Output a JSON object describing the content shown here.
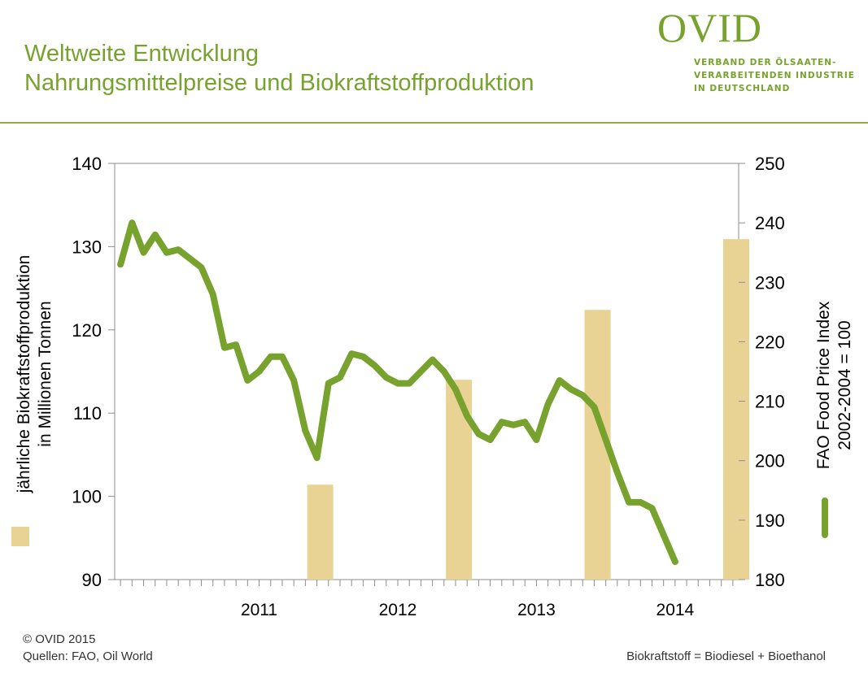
{
  "header": {
    "title_line1": "Weltweite Entwicklung",
    "title_line2": "Nahrungsmittelpreise und Biokraftstoffproduktion",
    "accent_color": "#77a22e"
  },
  "logo": {
    "wordmark": "OVID",
    "tagline": [
      "VERBAND DER ÖLSAATEN-",
      "VERARBEITENDEN INDUSTRIE",
      "IN DEUTSCHLAND"
    ]
  },
  "footer": {
    "copyright": "© OVID 2015",
    "sources": "Quellen: FAO, Oil World",
    "note": "Biokraftstoff = Biodiesel + Bioethanol"
  },
  "chart_data": {
    "type": "bar+line",
    "x_ticks": [
      "2011",
      "2012",
      "2013",
      "2014"
    ],
    "left_axis": {
      "label_line1": "jährliche Biokraftstoffproduktion",
      "label_line2": "in Millionen Tonnen",
      "range": [
        90,
        140
      ],
      "ticks": [
        90,
        100,
        110,
        120,
        130,
        140
      ]
    },
    "right_axis": {
      "label_line1": "FAO Food Price Index",
      "label_line2": "2002-2004 = 100",
      "range": [
        180,
        250
      ],
      "ticks": [
        180,
        190,
        200,
        210,
        220,
        230,
        240,
        250
      ]
    },
    "bars": {
      "color": "#e9d394",
      "categories": [
        "2011",
        "2012",
        "2013",
        "2014"
      ],
      "values": [
        101.4,
        114,
        122.4,
        130.9
      ]
    },
    "line": {
      "color": "#77a22e",
      "start": "2010-07",
      "values": [
        233,
        240,
        235,
        238,
        235,
        235.5,
        234,
        232.5,
        228,
        219,
        219.5,
        213.5,
        215,
        217.5,
        217.5,
        213.5,
        205,
        200.5,
        213,
        214,
        218,
        217.5,
        216,
        214,
        213,
        213,
        215,
        217,
        215,
        212,
        207.5,
        204.5,
        203.5,
        206.5,
        206,
        206.5,
        203.5,
        209.5,
        213.5,
        212,
        211,
        209,
        203.5,
        198,
        193,
        193,
        192,
        187.5,
        183
      ]
    }
  }
}
